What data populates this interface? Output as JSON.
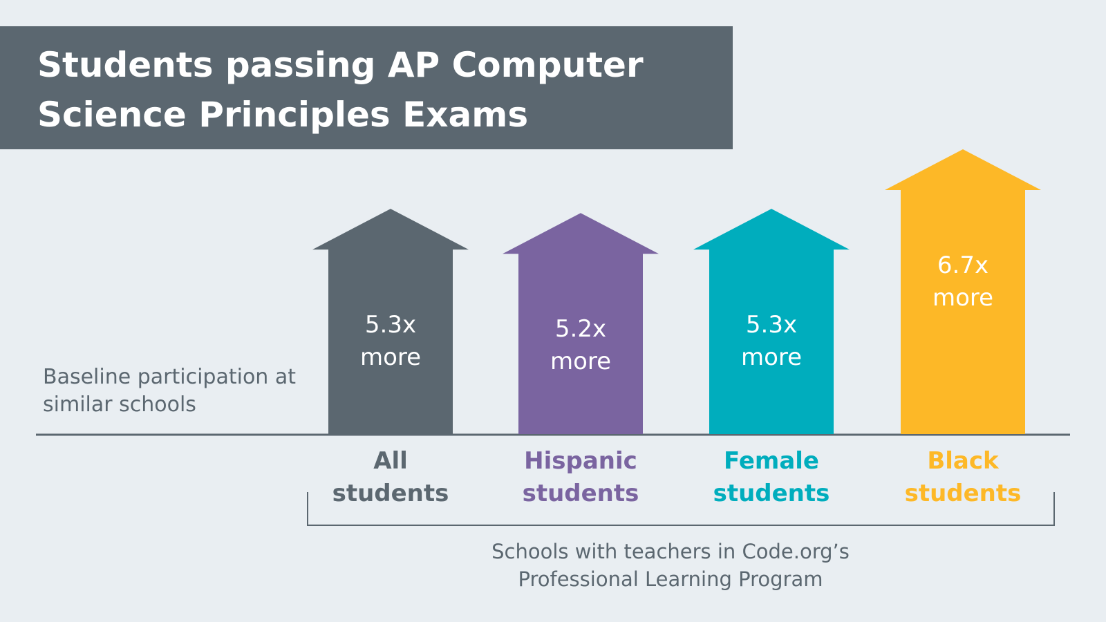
{
  "chart_data": {
    "type": "bar",
    "title": "Students passing AP Computer Science Principles Exams",
    "baseline_label": "Baseline participation at similar schools",
    "group_label": "Schools with teachers in Code.org’s Professional Learning Program",
    "categories": [
      "All students",
      "Hispanic students",
      "Female students",
      "Black students"
    ],
    "values": [
      5.3,
      5.2,
      5.3,
      6.7
    ],
    "value_labels": [
      "5.3x more",
      "5.2x more",
      "5.3x more",
      "6.7x more"
    ],
    "colors": [
      "#5b6770",
      "#7a64a0",
      "#00adbd",
      "#fdb827"
    ]
  }
}
